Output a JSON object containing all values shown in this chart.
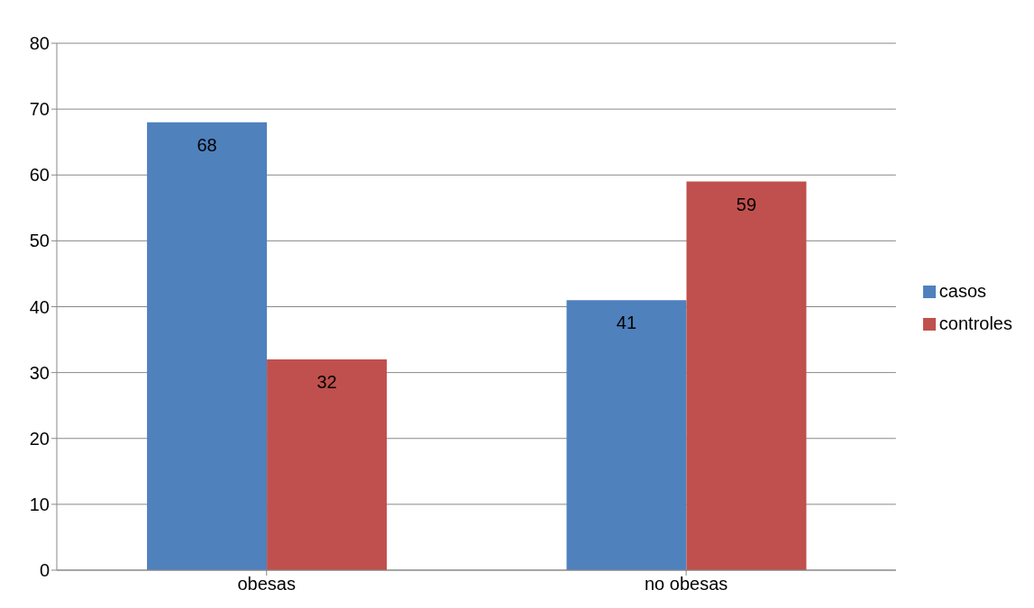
{
  "chart_data": {
    "type": "bar",
    "categories": [
      "obesas",
      "no obesas"
    ],
    "series": [
      {
        "name": "casos",
        "color": "#4f81bd",
        "values": [
          68,
          41
        ]
      },
      {
        "name": "controles",
        "color": "#c0504d",
        "values": [
          32,
          59
        ]
      }
    ],
    "ylim": [
      0,
      80
    ],
    "yticks": [
      0,
      10,
      20,
      30,
      40,
      50,
      60,
      70,
      80
    ],
    "grid": "y",
    "legend": "right",
    "data_labels": true
  }
}
